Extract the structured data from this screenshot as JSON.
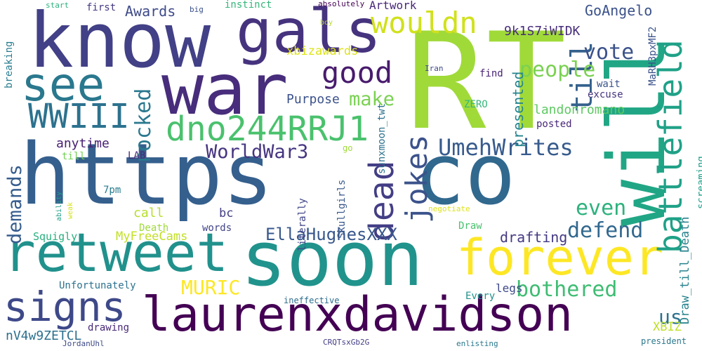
{
  "words": [
    {
      "text": "https",
      "color": "#355f8d"
    },
    {
      "text": "co",
      "color": "#31688e"
    },
    {
      "text": "RT",
      "color": "#a0da39"
    },
    {
      "text": "soon",
      "color": "#20938c"
    },
    {
      "text": "war",
      "color": "#472d7b"
    },
    {
      "text": "know",
      "color": "#424086"
    },
    {
      "text": "will",
      "color": "#21a685"
    },
    {
      "text": "gals",
      "color": "#46337e"
    },
    {
      "text": "forever",
      "color": "#fde725"
    },
    {
      "text": "retweet",
      "color": "#21918c"
    },
    {
      "text": "laurenxdavidson",
      "color": "#440154"
    },
    {
      "text": "see",
      "color": "#2a788e"
    },
    {
      "text": "signs",
      "color": "#3e4989"
    },
    {
      "text": "dno244RRJ1",
      "color": "#4ac16d"
    },
    {
      "text": "wouldn",
      "color": "#d0e11c"
    },
    {
      "text": "good",
      "color": "#481b6d"
    },
    {
      "text": "WWIII",
      "color": "#2c728e"
    },
    {
      "text": "battlefield",
      "color": "#1fa187"
    },
    {
      "text": "dead",
      "color": "#433e85"
    },
    {
      "text": "jokes",
      "color": "#3b528b"
    },
    {
      "text": "UmehWrites",
      "color": "#375b8d"
    },
    {
      "text": "till",
      "color": "#34618d"
    },
    {
      "text": "people",
      "color": "#7ad151"
    },
    {
      "text": "WorldWar3",
      "color": "#463480"
    },
    {
      "text": "bothered",
      "color": "#3fbc73"
    },
    {
      "text": "defend",
      "color": "#31688e"
    },
    {
      "text": "even",
      "color": "#2db27d"
    },
    {
      "text": "rocked",
      "color": "#2a788e"
    },
    {
      "text": "make",
      "color": "#7ad151"
    },
    {
      "text": "vote",
      "color": "#3b528b"
    },
    {
      "text": "demands",
      "color": "#365c8d"
    },
    {
      "text": "EllaHughesXXX",
      "color": "#38588c"
    },
    {
      "text": "MURIC",
      "color": "#fde725"
    },
    {
      "text": "us",
      "color": "#2c728e"
    },
    {
      "text": "presented",
      "color": "#25848e"
    },
    {
      "text": "drafting",
      "color": "#443a83"
    },
    {
      "text": "GoAngelo",
      "color": "#3b528b"
    },
    {
      "text": "9k1S7iWIDK",
      "color": "#472d7b"
    },
    {
      "text": "Awards",
      "color": "#3e4a89"
    },
    {
      "text": "Artwork",
      "color": "#482878"
    },
    {
      "text": "xbizawards",
      "color": "#dde318"
    },
    {
      "text": "Purpose",
      "color": "#3b528b"
    },
    {
      "text": "landonromano",
      "color": "#5ec962"
    },
    {
      "text": "anytime",
      "color": "#482173"
    },
    {
      "text": "MyFreeCams",
      "color": "#c2df23"
    },
    {
      "text": "call",
      "color": "#b5de2b"
    },
    {
      "text": "bc",
      "color": "#433e85"
    },
    {
      "text": "Squigly",
      "color": "#2ab07f"
    },
    {
      "text": "XBIZ",
      "color": "#bddf26"
    },
    {
      "text": "Unfortunately",
      "color": "#2c728e"
    },
    {
      "text": "nV4w9ZETCL",
      "color": "#2d708e"
    },
    {
      "text": "MaRH3pxMF2",
      "color": "#3b528b"
    },
    {
      "text": "Draw_till_Death",
      "color": "#26828e"
    },
    {
      "text": "screaming",
      "color": "#1f9e89"
    },
    {
      "text": "breaking",
      "color": "#287c8e"
    },
    {
      "text": "first",
      "color": "#453882"
    },
    {
      "text": "instinct",
      "color": "#35b779"
    },
    {
      "text": "start",
      "color": "#2db27d"
    },
    {
      "text": "big",
      "color": "#3b528b"
    },
    {
      "text": "absolutely",
      "color": "#440154"
    },
    {
      "text": "boy",
      "color": "#b5de2b"
    },
    {
      "text": "find",
      "color": "#482475"
    },
    {
      "text": "Iran",
      "color": "#3e4989"
    },
    {
      "text": "wait",
      "color": "#3b528b"
    },
    {
      "text": "excuse",
      "color": "#46337e"
    },
    {
      "text": "ZERO",
      "color": "#35b779"
    },
    {
      "text": "posted",
      "color": "#482878"
    },
    {
      "text": "sunxmoon_twt",
      "color": "#2c728e"
    },
    {
      "text": "Skullgirls",
      "color": "#38588c"
    },
    {
      "text": "literally",
      "color": "#404688"
    },
    {
      "text": "words",
      "color": "#414487"
    },
    {
      "text": "LAB",
      "color": "#472c7a"
    },
    {
      "text": "7pm",
      "color": "#287c8e"
    },
    {
      "text": "Death",
      "color": "#9fda3a"
    },
    {
      "text": "till",
      "color": "#73d056"
    },
    {
      "text": "go",
      "color": "#9fda3a"
    },
    {
      "text": "Draw",
      "color": "#4ac16d"
    },
    {
      "text": "legs",
      "color": "#3e4989"
    },
    {
      "text": "Every",
      "color": "#21918c"
    },
    {
      "text": "negotiate",
      "color": "#dde318"
    },
    {
      "text": "ability",
      "color": "#1f9e89"
    },
    {
      "text": "weak",
      "color": "#d8e219"
    },
    {
      "text": "ineffective",
      "color": "#2e6e8e"
    },
    {
      "text": "drawing",
      "color": "#482878"
    },
    {
      "text": "JordanUhl",
      "color": "#3e4a89"
    },
    {
      "text": "CRQTsxGb2G",
      "color": "#433e85"
    },
    {
      "text": "enlisting",
      "color": "#2a788e"
    },
    {
      "text": "president",
      "color": "#2a788e"
    }
  ]
}
